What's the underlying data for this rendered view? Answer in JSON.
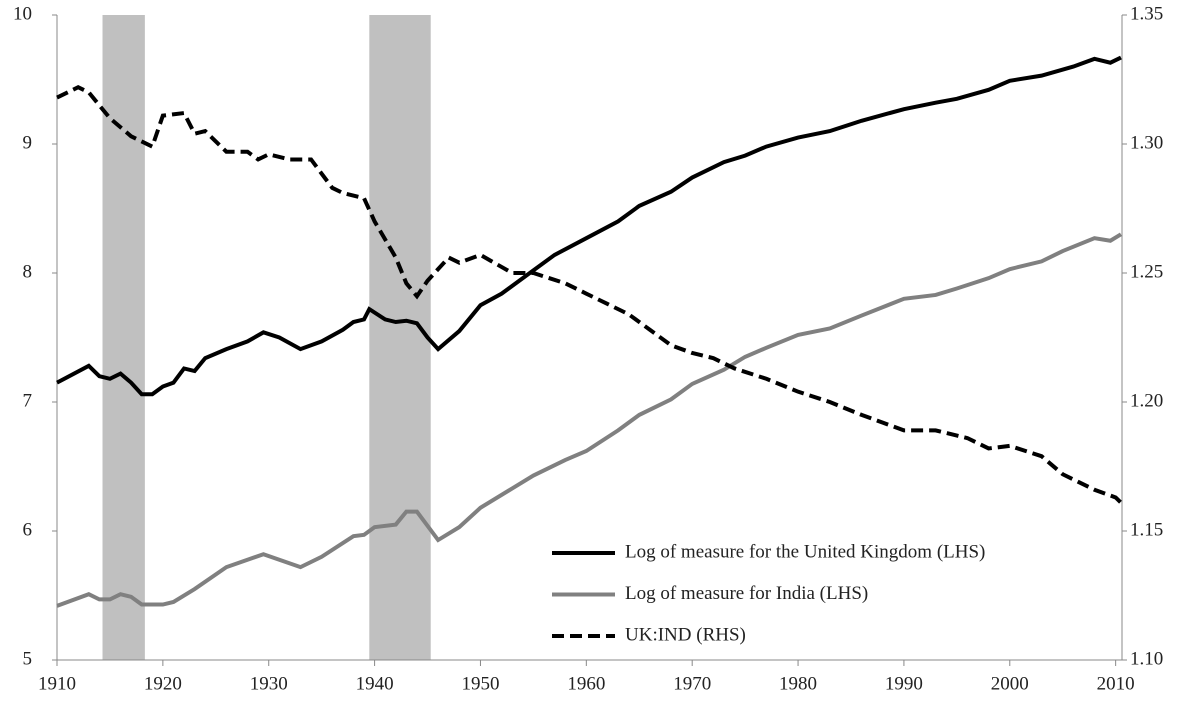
{
  "chart_data": {
    "type": "line",
    "xlim": [
      1910,
      2010.6
    ],
    "xticks": [
      1910,
      1920,
      1930,
      1940,
      1950,
      1960,
      1970,
      1980,
      1990,
      2000,
      2010
    ],
    "ylim": [
      5,
      10
    ],
    "yticks": [
      5,
      6,
      7,
      8,
      9,
      10
    ],
    "y2lim": [
      1.1,
      1.35
    ],
    "y2ticks": [
      {
        "value": 1.1,
        "label": "1.10"
      },
      1.15,
      {
        "value": 1.2,
        "label": "1.20"
      },
      1.25,
      {
        "value": 1.3,
        "label": "1.30"
      },
      1.35
    ],
    "shaded_periods": [
      [
        1914.3,
        1918.3
      ],
      [
        1939.5,
        1945.3
      ]
    ],
    "shade_color": "#c0c0c0",
    "legend": "lower right",
    "grid": false,
    "series": [
      {
        "name": "Log of measure for the United Kingdom (LHS)",
        "color": "#000000",
        "dash": false,
        "x": [
          1910,
          1913,
          1914,
          1915,
          1916,
          1917,
          1918,
          1919,
          1920,
          1921,
          1922,
          1923,
          1924,
          1926,
          1928,
          1929.5,
          1931,
          1933,
          1935,
          1937,
          1938,
          1939,
          1939.5,
          1941,
          1942,
          1943,
          1944,
          1945,
          1946,
          1948,
          1950,
          1952,
          1955,
          1957,
          1960,
          1963,
          1965,
          1968,
          1970,
          1973,
          1975,
          1977,
          1980,
          1983,
          1986,
          1990,
          1993,
          1995,
          1998,
          2000,
          2003,
          2006,
          2008,
          2009.5,
          2010.5
        ],
        "values": [
          7.15,
          7.28,
          7.2,
          7.18,
          7.22,
          7.15,
          7.06,
          7.06,
          7.12,
          7.15,
          7.26,
          7.24,
          7.34,
          7.41,
          7.47,
          7.54,
          7.5,
          7.41,
          7.47,
          7.56,
          7.62,
          7.64,
          7.72,
          7.64,
          7.62,
          7.63,
          7.61,
          7.5,
          7.41,
          7.55,
          7.75,
          7.84,
          8.02,
          8.14,
          8.27,
          8.4,
          8.52,
          8.63,
          8.74,
          8.86,
          8.91,
          8.98,
          9.05,
          9.1,
          9.18,
          9.27,
          9.32,
          9.35,
          9.42,
          9.49,
          9.53,
          9.6,
          9.66,
          9.63,
          9.67
        ]
      },
      {
        "name": "Log of measure for India (LHS)",
        "color": "#808080",
        "dash": false,
        "x": [
          1910,
          1913,
          1914,
          1915,
          1916,
          1917,
          1918,
          1920,
          1921,
          1923,
          1926,
          1929.5,
          1933,
          1935,
          1938,
          1939,
          1940,
          1942,
          1943,
          1944,
          1945,
          1946,
          1948,
          1950,
          1953,
          1955,
          1958,
          1960,
          1963,
          1965,
          1968,
          1970,
          1973,
          1975,
          1977,
          1980,
          1983,
          1986,
          1990,
          1993,
          1995,
          1998,
          2000,
          2003,
          2005,
          2008,
          2009.5,
          2010.5
        ],
        "values": [
          5.42,
          5.51,
          5.47,
          5.47,
          5.51,
          5.49,
          5.43,
          5.43,
          5.45,
          5.55,
          5.72,
          5.82,
          5.72,
          5.8,
          5.96,
          5.97,
          6.03,
          6.05,
          6.15,
          6.15,
          6.04,
          5.93,
          6.03,
          6.18,
          6.33,
          6.43,
          6.55,
          6.62,
          6.78,
          6.9,
          7.02,
          7.14,
          7.25,
          7.35,
          7.42,
          7.52,
          7.57,
          7.67,
          7.8,
          7.83,
          7.88,
          7.96,
          8.03,
          8.09,
          8.17,
          8.27,
          8.25,
          8.3
        ]
      },
      {
        "name": "UK:IND (RHS)",
        "color": "#000000",
        "dash": true,
        "axis": "y2",
        "x": [
          1910,
          1912,
          1913,
          1915,
          1917,
          1919,
          1920,
          1922,
          1923,
          1924,
          1926,
          1928,
          1929,
          1930,
          1932,
          1934,
          1936,
          1937,
          1939,
          1940,
          1942,
          1943,
          1944,
          1945,
          1947,
          1948,
          1950,
          1953,
          1955,
          1958,
          1960,
          1962,
          1964,
          1966,
          1968,
          1970,
          1972,
          1974,
          1977,
          1980,
          1983,
          1986,
          1988,
          1990,
          1993,
          1996,
          1998,
          2000,
          2003,
          2005,
          2008,
          2010,
          2010.5
        ],
        "values": [
          1.318,
          1.322,
          1.32,
          1.31,
          1.303,
          1.299,
          1.311,
          1.312,
          1.304,
          1.305,
          1.297,
          1.297,
          1.294,
          1.296,
          1.294,
          1.294,
          1.283,
          1.281,
          1.279,
          1.27,
          1.256,
          1.246,
          1.241,
          1.247,
          1.256,
          1.254,
          1.257,
          1.25,
          1.25,
          1.246,
          1.242,
          1.238,
          1.234,
          1.228,
          1.222,
          1.219,
          1.217,
          1.213,
          1.209,
          1.204,
          1.2,
          1.195,
          1.192,
          1.189,
          1.189,
          1.186,
          1.182,
          1.183,
          1.179,
          1.172,
          1.166,
          1.163,
          1.161
        ]
      }
    ]
  }
}
